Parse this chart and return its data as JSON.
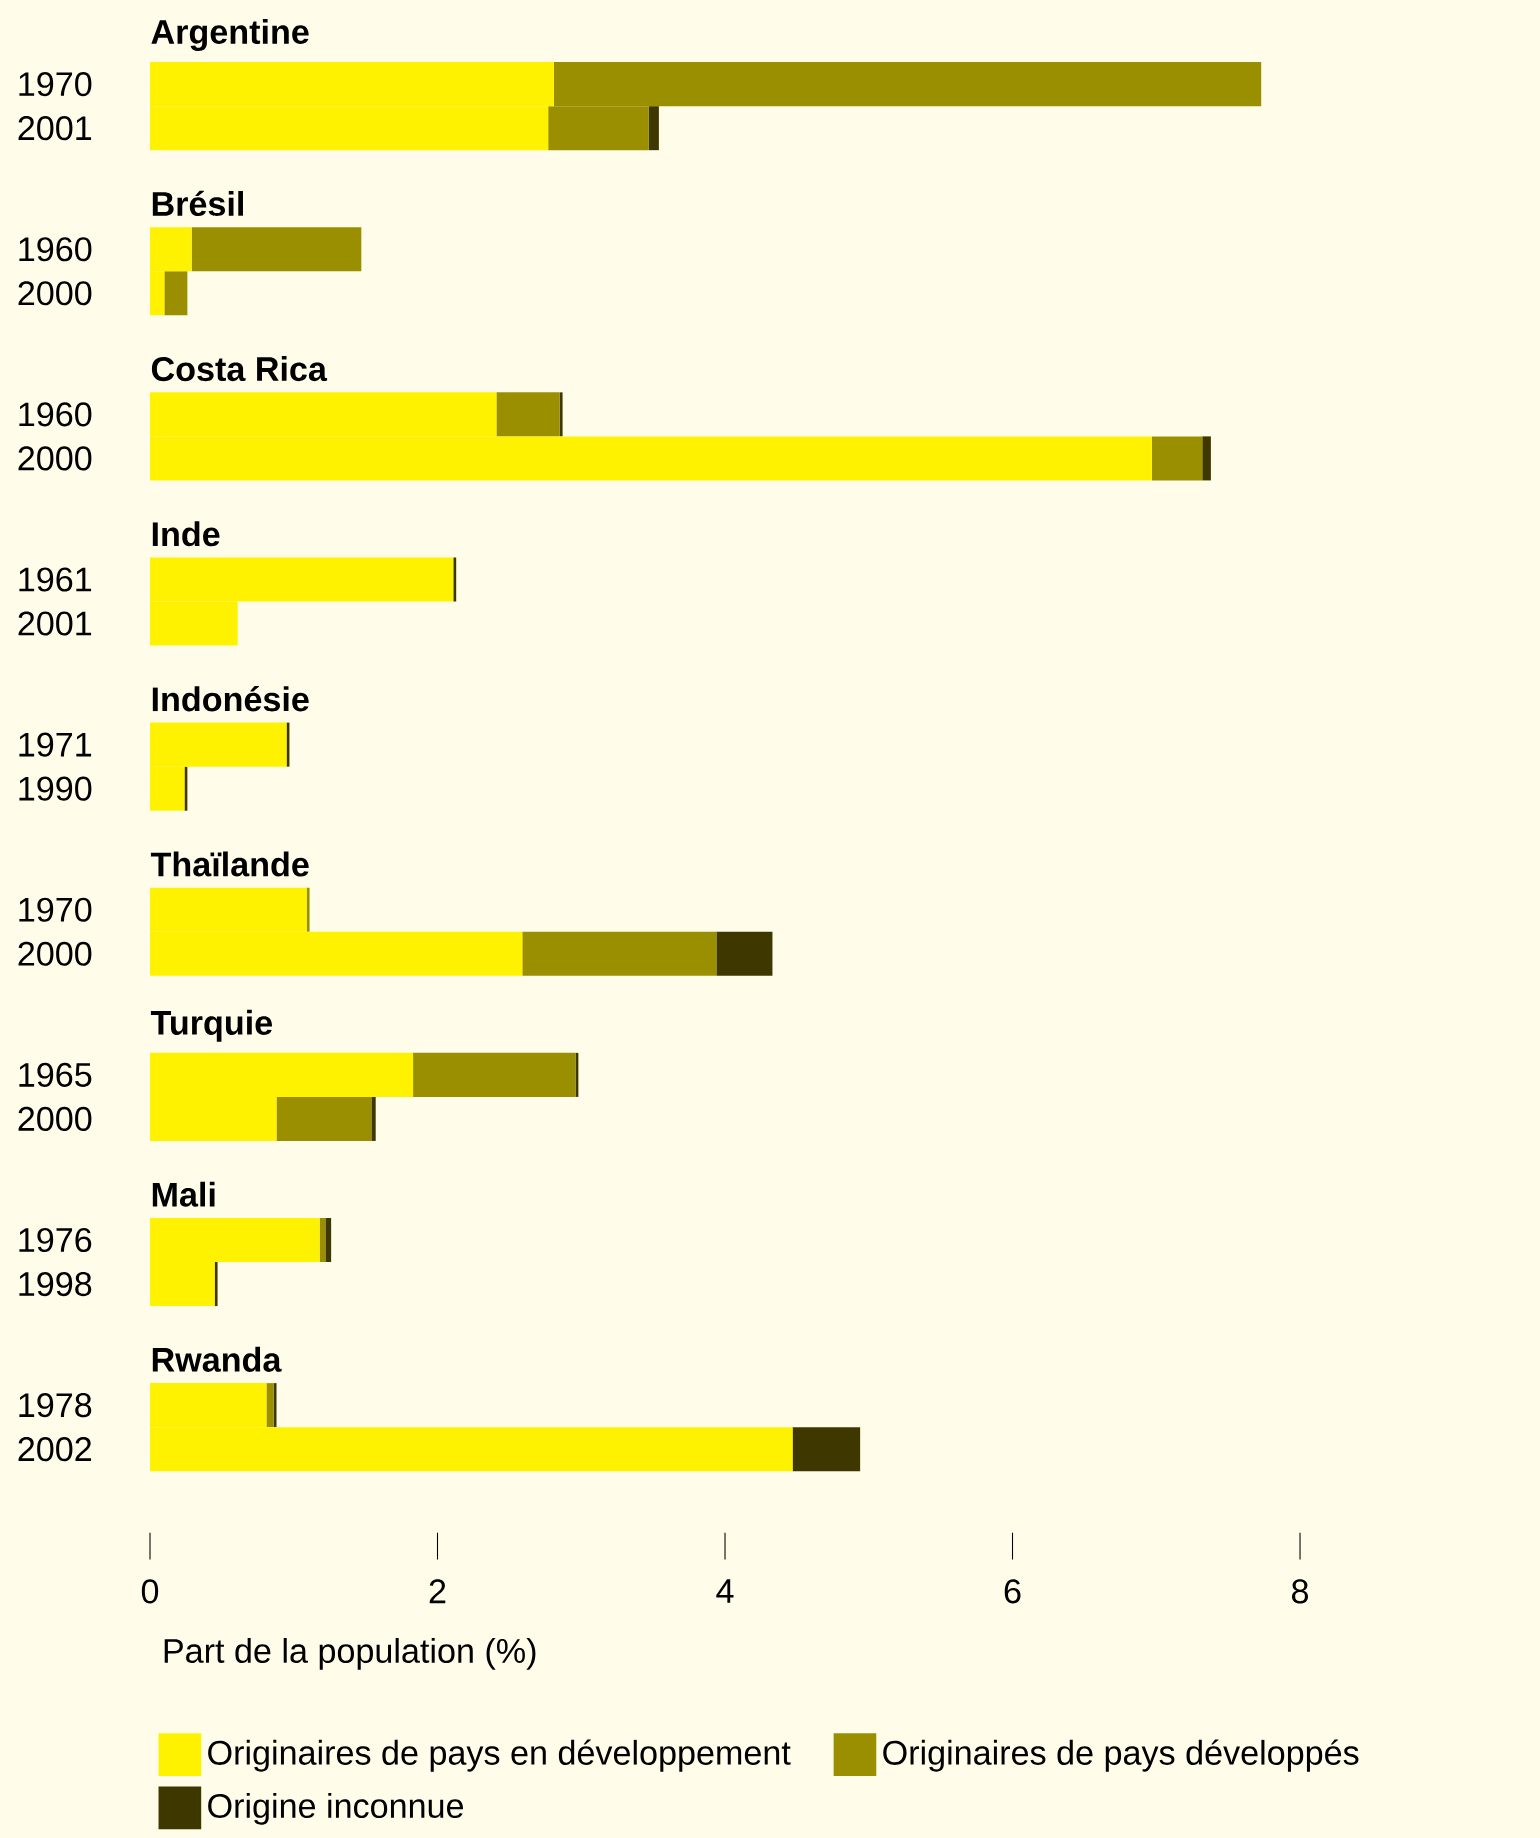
{
  "chart_data": {
    "type": "bar",
    "orientation": "horizontal",
    "stacked": true,
    "categories": [
      "1970",
      "2001",
      "1960",
      "2000",
      "1960",
      "2000",
      "1961",
      "2001",
      "1971",
      "1990",
      "1970",
      "2000",
      "1965",
      "2000",
      "1976",
      "1998",
      "1978",
      "2002"
    ],
    "annotations": [
      "Argentine",
      "Brésil",
      "Costa Rica",
      "Inde",
      "Indonésie",
      "Thaïlande",
      "Turquie",
      "Mali",
      "Rwanda"
    ],
    "series": [
      {
        "name": "Originaires de pays en développement",
        "color": "#fff200",
        "values": [
          2.81,
          2.77,
          0.29,
          0.1,
          2.41,
          6.97,
          2.11,
          0.61,
          0.95,
          0.24,
          1.09,
          2.59,
          1.83,
          0.88,
          1.18,
          0.45,
          0.81,
          4.47
        ]
      },
      {
        "name": "Originaires de pays développés",
        "color": "#9a8f00",
        "values": [
          4.92,
          0.7,
          1.18,
          0.16,
          0.44,
          0.35,
          0,
          0,
          0,
          0,
          0.02,
          1.35,
          1.13,
          0.66,
          0.04,
          0,
          0.05,
          0
        ]
      },
      {
        "name": "Origine inconnue",
        "color": "#3f3700",
        "values": [
          0,
          0.07,
          0,
          0,
          0.02,
          0.06,
          0.02,
          0,
          0.02,
          0.02,
          0,
          0.39,
          0.02,
          0.03,
          0.04,
          0.02,
          0.02,
          0.47
        ]
      }
    ],
    "xlabel": "Part de la population (%)",
    "xlim": [
      0,
      8
    ],
    "xticks": [
      0,
      2,
      4,
      6,
      8
    ],
    "legend": "bottom"
  }
}
